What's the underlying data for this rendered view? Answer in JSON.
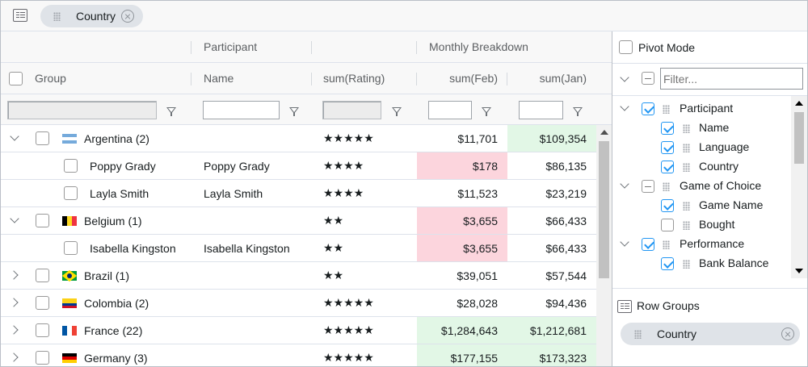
{
  "group_zone": {
    "icon": "row-group-icon",
    "pill_label": "Country",
    "remove_icon": "close-circle-icon"
  },
  "header_groups": {
    "participant": "Participant",
    "monthly": "Monthly Breakdown"
  },
  "columns": {
    "group": "Group",
    "name": "Name",
    "rating": "sum(Rating)",
    "feb": "sum(Feb)",
    "jan": "sum(Jan)"
  },
  "rows": [
    {
      "kind": "group",
      "expanded": true,
      "flag": "argentina-flag",
      "group": "Argentina (2)",
      "name": "",
      "rating": "★★★★★",
      "feb": "$11,701",
      "jan": "$109,354",
      "feb_hl": "",
      "jan_hl": "green"
    },
    {
      "kind": "leaf",
      "group": "Poppy Grady",
      "name": "Poppy Grady",
      "rating": "★★★★",
      "feb": "$178",
      "jan": "$86,135",
      "feb_hl": "pink",
      "jan_hl": ""
    },
    {
      "kind": "leaf",
      "group": "Layla Smith",
      "name": "Layla Smith",
      "rating": "★★★★",
      "feb": "$11,523",
      "jan": "$23,219",
      "feb_hl": "",
      "jan_hl": ""
    },
    {
      "kind": "group",
      "expanded": true,
      "flag": "belgium-flag",
      "group": "Belgium (1)",
      "name": "",
      "rating": "★★",
      "feb": "$3,655",
      "jan": "$66,433",
      "feb_hl": "pink",
      "jan_hl": ""
    },
    {
      "kind": "leaf",
      "group": "Isabella Kingston",
      "name": "Isabella Kingston",
      "rating": "★★",
      "feb": "$3,655",
      "jan": "$66,433",
      "feb_hl": "pink",
      "jan_hl": ""
    },
    {
      "kind": "group",
      "expanded": false,
      "flag": "brazil-flag",
      "group": "Brazil (1)",
      "name": "",
      "rating": "★★",
      "feb": "$39,051",
      "jan": "$57,544",
      "feb_hl": "",
      "jan_hl": ""
    },
    {
      "kind": "group",
      "expanded": false,
      "flag": "colombia-flag",
      "group": "Colombia (2)",
      "name": "",
      "rating": "★★★★★",
      "feb": "$28,028",
      "jan": "$94,436",
      "feb_hl": "",
      "jan_hl": ""
    },
    {
      "kind": "group",
      "expanded": false,
      "flag": "france-flag",
      "group": "France (22)",
      "name": "",
      "rating": "★★★★★",
      "feb": "$1,284,643",
      "jan": "$1,212,681",
      "feb_hl": "green",
      "jan_hl": "green"
    },
    {
      "kind": "group",
      "expanded": false,
      "flag": "germany-flag",
      "group": "Germany (3)",
      "name": "",
      "rating": "★★★★★",
      "feb": "$177,155",
      "jan": "$173,323",
      "feb_hl": "green",
      "jan_hl": "green"
    }
  ],
  "colors": {
    "pink": "#fcd5dd",
    "green": "#e2f7e6",
    "accent": "#2196f3"
  },
  "side_panel": {
    "pivot_mode_label": "Pivot Mode",
    "filter_placeholder": "Filter...",
    "tree": [
      {
        "label": "Participant",
        "level": 0,
        "state": "on",
        "expand": "down"
      },
      {
        "label": "Name",
        "level": 1,
        "state": "on"
      },
      {
        "label": "Language",
        "level": 1,
        "state": "on"
      },
      {
        "label": "Country",
        "level": 1,
        "state": "on"
      },
      {
        "label": "Game of Choice",
        "level": 0,
        "state": "ind",
        "expand": "down"
      },
      {
        "label": "Game Name",
        "level": 1,
        "state": "on"
      },
      {
        "label": "Bought",
        "level": 1,
        "state": "off"
      },
      {
        "label": "Performance",
        "level": 0,
        "state": "on",
        "expand": "down"
      },
      {
        "label": "Bank Balance",
        "level": 1,
        "state": "on"
      }
    ],
    "row_groups_label": "Row Groups",
    "row_groups_pill": "Country"
  }
}
